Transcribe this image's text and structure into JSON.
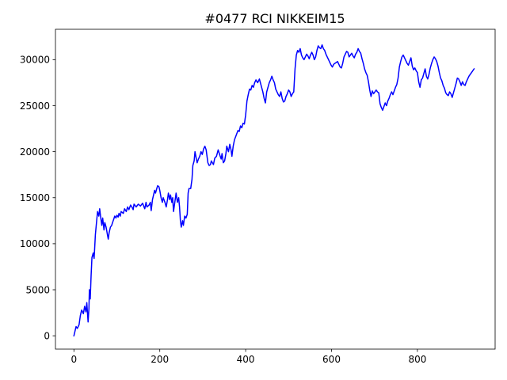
{
  "chart_data": {
    "type": "line",
    "title": "#0477 RCI NIKKEIM15",
    "xlabel": "",
    "ylabel": "",
    "xlim": [
      -43,
      981
    ],
    "ylim": [
      -1450,
      33300
    ],
    "x_ticks": [
      0,
      200,
      400,
      600,
      800
    ],
    "y_ticks": [
      0,
      5000,
      10000,
      15000,
      20000,
      25000,
      30000
    ],
    "grid": false,
    "series": [
      {
        "color": "#0000ff",
        "points": [
          [
            0,
            0
          ],
          [
            3,
            600
          ],
          [
            5,
            1000
          ],
          [
            8,
            800
          ],
          [
            12,
            1200
          ],
          [
            15,
            2200
          ],
          [
            18,
            2800
          ],
          [
            22,
            2400
          ],
          [
            25,
            3200
          ],
          [
            28,
            2600
          ],
          [
            30,
            3600
          ],
          [
            32,
            2200
          ],
          [
            33,
            1500
          ],
          [
            35,
            3000
          ],
          [
            36,
            5000
          ],
          [
            38,
            4000
          ],
          [
            40,
            6500
          ],
          [
            42,
            8500
          ],
          [
            45,
            9000
          ],
          [
            47,
            8400
          ],
          [
            48,
            9200
          ],
          [
            50,
            11000
          ],
          [
            53,
            12500
          ],
          [
            55,
            13500
          ],
          [
            58,
            13000
          ],
          [
            60,
            13800
          ],
          [
            62,
            13000
          ],
          [
            65,
            12000
          ],
          [
            67,
            12800
          ],
          [
            70,
            11500
          ],
          [
            72,
            12300
          ],
          [
            75,
            11800
          ],
          [
            78,
            11000
          ],
          [
            80,
            10500
          ],
          [
            82,
            11200
          ],
          [
            85,
            11800
          ],
          [
            88,
            12000
          ],
          [
            90,
            12300
          ],
          [
            93,
            12700
          ],
          [
            95,
            13000
          ],
          [
            98,
            12800
          ],
          [
            100,
            13100
          ],
          [
            103,
            12900
          ],
          [
            105,
            13300
          ],
          [
            108,
            13000
          ],
          [
            110,
            13500
          ],
          [
            115,
            13300
          ],
          [
            118,
            13800
          ],
          [
            122,
            13500
          ],
          [
            125,
            14000
          ],
          [
            128,
            13700
          ],
          [
            132,
            14200
          ],
          [
            135,
            14000
          ],
          [
            138,
            13700
          ],
          [
            140,
            14300
          ],
          [
            145,
            14000
          ],
          [
            150,
            14300
          ],
          [
            155,
            14100
          ],
          [
            160,
            14400
          ],
          [
            165,
            13800
          ],
          [
            168,
            14500
          ],
          [
            170,
            14000
          ],
          [
            175,
            14200
          ],
          [
            178,
            14500
          ],
          [
            180,
            13600
          ],
          [
            183,
            14800
          ],
          [
            185,
            15200
          ],
          [
            188,
            15800
          ],
          [
            190,
            15500
          ],
          [
            193,
            16000
          ],
          [
            195,
            16300
          ],
          [
            198,
            16200
          ],
          [
            200,
            15800
          ],
          [
            203,
            15000
          ],
          [
            206,
            14500
          ],
          [
            208,
            15000
          ],
          [
            212,
            14500
          ],
          [
            215,
            14000
          ],
          [
            218,
            14800
          ],
          [
            220,
            15500
          ],
          [
            223,
            14800
          ],
          [
            225,
            15300
          ],
          [
            228,
            14500
          ],
          [
            230,
            15000
          ],
          [
            232,
            13500
          ],
          [
            235,
            14500
          ],
          [
            238,
            15500
          ],
          [
            241,
            14500
          ],
          [
            244,
            15000
          ],
          [
            246,
            14000
          ],
          [
            248,
            12500
          ],
          [
            250,
            11800
          ],
          [
            253,
            12500
          ],
          [
            255,
            12000
          ],
          [
            258,
            13000
          ],
          [
            261,
            12800
          ],
          [
            264,
            13200
          ],
          [
            266,
            15500
          ],
          [
            268,
            16000
          ],
          [
            272,
            16000
          ],
          [
            275,
            17000
          ],
          [
            277,
            18500
          ],
          [
            280,
            19000
          ],
          [
            282,
            20000
          ],
          [
            284,
            19500
          ],
          [
            287,
            18800
          ],
          [
            290,
            19200
          ],
          [
            293,
            19500
          ],
          [
            296,
            20000
          ],
          [
            299,
            19700
          ],
          [
            302,
            20300
          ],
          [
            305,
            20600
          ],
          [
            308,
            20200
          ],
          [
            310,
            19500
          ],
          [
            312,
            18800
          ],
          [
            315,
            18500
          ],
          [
            318,
            18600
          ],
          [
            320,
            19000
          ],
          [
            325,
            18600
          ],
          [
            328,
            19300
          ],
          [
            332,
            19500
          ],
          [
            336,
            20200
          ],
          [
            340,
            19600
          ],
          [
            343,
            19200
          ],
          [
            345,
            19800
          ],
          [
            348,
            18800
          ],
          [
            351,
            19000
          ],
          [
            354,
            19800
          ],
          [
            356,
            20600
          ],
          [
            360,
            20000
          ],
          [
            363,
            20800
          ],
          [
            366,
            20200
          ],
          [
            368,
            19500
          ],
          [
            371,
            20600
          ],
          [
            374,
            21300
          ],
          [
            378,
            21800
          ],
          [
            382,
            22300
          ],
          [
            385,
            22200
          ],
          [
            388,
            22800
          ],
          [
            391,
            22600
          ],
          [
            394,
            23100
          ],
          [
            397,
            23000
          ],
          [
            400,
            24000
          ],
          [
            403,
            25500
          ],
          [
            406,
            26200
          ],
          [
            409,
            26800
          ],
          [
            412,
            26700
          ],
          [
            415,
            27200
          ],
          [
            418,
            27000
          ],
          [
            421,
            27500
          ],
          [
            424,
            27800
          ],
          [
            428,
            27500
          ],
          [
            432,
            27900
          ],
          [
            436,
            27200
          ],
          [
            440,
            26500
          ],
          [
            443,
            25800
          ],
          [
            446,
            25300
          ],
          [
            449,
            26500
          ],
          [
            452,
            27000
          ],
          [
            455,
            27500
          ],
          [
            458,
            27800
          ],
          [
            461,
            28200
          ],
          [
            464,
            27800
          ],
          [
            467,
            27500
          ],
          [
            470,
            26800
          ],
          [
            473,
            26500
          ],
          [
            476,
            26200
          ],
          [
            479,
            26000
          ],
          [
            482,
            26500
          ],
          [
            485,
            25800
          ],
          [
            488,
            25400
          ],
          [
            491,
            25500
          ],
          [
            494,
            26000
          ],
          [
            497,
            26300
          ],
          [
            500,
            26700
          ],
          [
            503,
            26500
          ],
          [
            506,
            26000
          ],
          [
            509,
            26300
          ],
          [
            512,
            26500
          ],
          [
            515,
            29000
          ],
          [
            518,
            30500
          ],
          [
            521,
            31000
          ],
          [
            524,
            30800
          ],
          [
            527,
            31200
          ],
          [
            530,
            30500
          ],
          [
            533,
            30200
          ],
          [
            536,
            30000
          ],
          [
            539,
            30300
          ],
          [
            542,
            30600
          ],
          [
            545,
            30400
          ],
          [
            548,
            30100
          ],
          [
            551,
            30500
          ],
          [
            554,
            30800
          ],
          [
            557,
            30500
          ],
          [
            560,
            30000
          ],
          [
            563,
            30300
          ],
          [
            566,
            31000
          ],
          [
            569,
            31500
          ],
          [
            572,
            31300
          ],
          [
            575,
            31200
          ],
          [
            578,
            31600
          ],
          [
            581,
            31200
          ],
          [
            584,
            31000
          ],
          [
            587,
            30600
          ],
          [
            590,
            30300
          ],
          [
            593,
            30000
          ],
          [
            596,
            29700
          ],
          [
            599,
            29400
          ],
          [
            602,
            29200
          ],
          [
            605,
            29500
          ],
          [
            608,
            29600
          ],
          [
            611,
            29700
          ],
          [
            614,
            29800
          ],
          [
            617,
            29500
          ],
          [
            620,
            29200
          ],
          [
            623,
            29100
          ],
          [
            626,
            29600
          ],
          [
            629,
            30300
          ],
          [
            632,
            30600
          ],
          [
            635,
            30900
          ],
          [
            638,
            30800
          ],
          [
            641,
            30300
          ],
          [
            644,
            30500
          ],
          [
            647,
            30700
          ],
          [
            650,
            30400
          ],
          [
            653,
            30200
          ],
          [
            656,
            30600
          ],
          [
            659,
            30800
          ],
          [
            662,
            31200
          ],
          [
            665,
            30900
          ],
          [
            668,
            30700
          ],
          [
            671,
            30100
          ],
          [
            674,
            29600
          ],
          [
            677,
            29000
          ],
          [
            680,
            28600
          ],
          [
            683,
            28300
          ],
          [
            686,
            27600
          ],
          [
            689,
            26700
          ],
          [
            692,
            26000
          ],
          [
            695,
            26600
          ],
          [
            698,
            26300
          ],
          [
            701,
            26500
          ],
          [
            704,
            26700
          ],
          [
            707,
            26500
          ],
          [
            710,
            26400
          ],
          [
            713,
            25200
          ],
          [
            716,
            24800
          ],
          [
            719,
            24500
          ],
          [
            722,
            24900
          ],
          [
            725,
            25300
          ],
          [
            728,
            25000
          ],
          [
            731,
            25500
          ],
          [
            734,
            25800
          ],
          [
            737,
            26200
          ],
          [
            740,
            26500
          ],
          [
            743,
            26200
          ],
          [
            746,
            26600
          ],
          [
            749,
            27000
          ],
          [
            752,
            27300
          ],
          [
            755,
            28000
          ],
          [
            758,
            29200
          ],
          [
            761,
            29800
          ],
          [
            764,
            30300
          ],
          [
            767,
            30500
          ],
          [
            770,
            30200
          ],
          [
            773,
            29900
          ],
          [
            776,
            29600
          ],
          [
            779,
            29400
          ],
          [
            782,
            29800
          ],
          [
            785,
            30200
          ],
          [
            788,
            29300
          ],
          [
            791,
            28900
          ],
          [
            794,
            29100
          ],
          [
            797,
            28800
          ],
          [
            800,
            28600
          ],
          [
            803,
            27600
          ],
          [
            806,
            27000
          ],
          [
            809,
            27800
          ],
          [
            812,
            28000
          ],
          [
            815,
            28500
          ],
          [
            818,
            29000
          ],
          [
            821,
            28200
          ],
          [
            824,
            27900
          ],
          [
            827,
            28400
          ],
          [
            830,
            29100
          ],
          [
            833,
            29600
          ],
          [
            836,
            30000
          ],
          [
            839,
            30300
          ],
          [
            842,
            30100
          ],
          [
            845,
            29800
          ],
          [
            848,
            29300
          ],
          [
            851,
            28600
          ],
          [
            854,
            28000
          ],
          [
            857,
            27700
          ],
          [
            860,
            27200
          ],
          [
            863,
            26900
          ],
          [
            866,
            26400
          ],
          [
            869,
            26200
          ],
          [
            872,
            26100
          ],
          [
            875,
            26500
          ],
          [
            878,
            26300
          ],
          [
            881,
            25900
          ],
          [
            884,
            26400
          ],
          [
            887,
            26900
          ],
          [
            890,
            27400
          ],
          [
            893,
            28000
          ],
          [
            896,
            27900
          ],
          [
            899,
            27600
          ],
          [
            902,
            27200
          ],
          [
            905,
            27600
          ],
          [
            908,
            27300
          ],
          [
            911,
            27200
          ],
          [
            914,
            27600
          ],
          [
            917,
            27900
          ],
          [
            920,
            28200
          ],
          [
            923,
            28400
          ],
          [
            926,
            28600
          ],
          [
            929,
            28800
          ],
          [
            932,
            29000
          ]
        ]
      }
    ]
  }
}
